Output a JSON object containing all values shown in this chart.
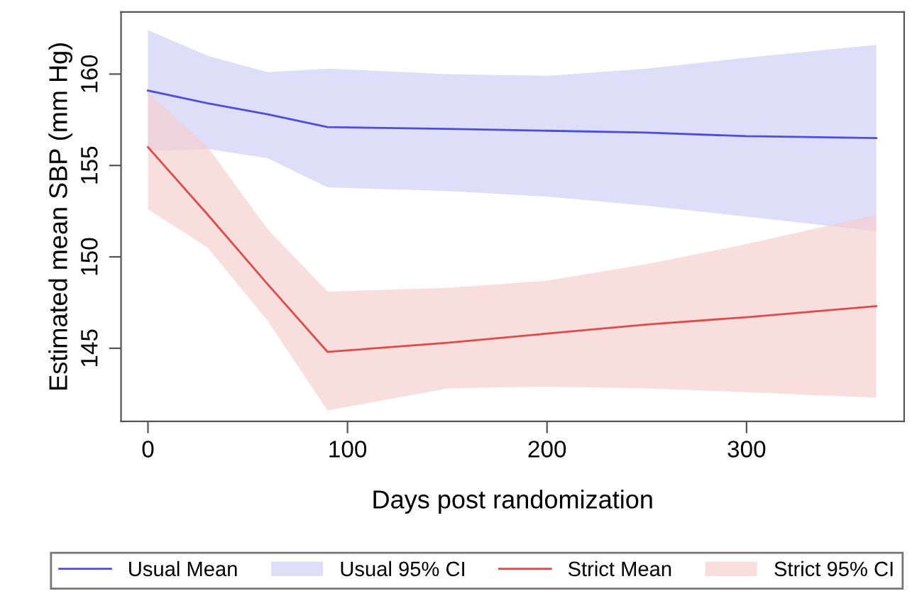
{
  "chart_data": {
    "type": "line",
    "xlabel": "Days post randomization",
    "ylabel": "Estimated mean SBP (mm Hg)",
    "xlim": [
      -13.5,
      379
    ],
    "xticks": [
      0,
      100,
      200,
      300
    ],
    "ylim": [
      141.0,
      163.4
    ],
    "yticks": [
      145,
      150,
      155,
      160
    ],
    "grid": false,
    "legend": "bottom",
    "line_style": "solid",
    "marker": "none",
    "annotations": [
      "Usual 95% CI",
      "Strict 95% CI"
    ],
    "series": [
      {
        "name": "Usual Mean",
        "color": "#4d4de0",
        "x": [
          0,
          30,
          60,
          90,
          150,
          200,
          250,
          300,
          365
        ],
        "values": [
          159.1,
          158.4,
          157.8,
          157.1,
          157.0,
          156.9,
          156.8,
          156.6,
          156.5
        ],
        "lower": [
          155.8,
          155.9,
          155.4,
          153.8,
          153.6,
          153.3,
          152.8,
          152.2,
          151.4
        ],
        "upper": [
          162.4,
          161.0,
          160.1,
          160.3,
          160.0,
          159.9,
          160.3,
          160.9,
          161.6
        ]
      },
      {
        "name": "Strict Mean",
        "color": "#e04a4a",
        "x": [
          0,
          30,
          60,
          90,
          150,
          200,
          250,
          300,
          365
        ],
        "values": [
          156.0,
          152.3,
          148.5,
          144.8,
          145.3,
          145.8,
          146.3,
          146.7,
          147.3
        ],
        "lower": [
          152.6,
          150.5,
          146.5,
          141.6,
          142.8,
          142.9,
          142.8,
          142.6,
          142.3
        ],
        "upper": [
          159.0,
          156.0,
          151.5,
          148.1,
          148.3,
          148.7,
          149.6,
          150.7,
          152.3
        ]
      }
    ]
  }
}
